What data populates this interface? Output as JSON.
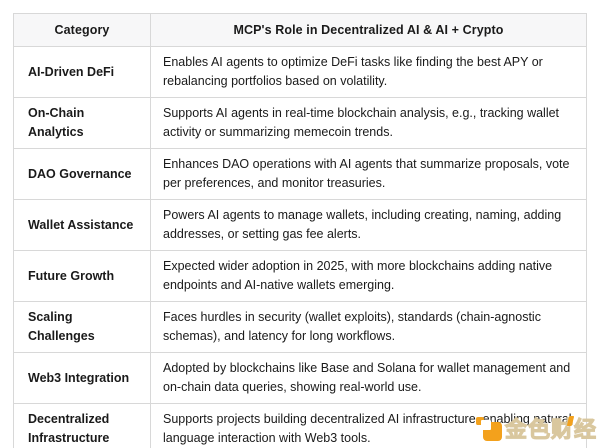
{
  "table": {
    "headers": [
      "Category",
      "MCP's Role in Decentralized AI & AI + Crypto"
    ],
    "rows": [
      {
        "category": "AI-Driven DeFi",
        "description": "Enables AI agents to optimize DeFi tasks like finding the best APY or rebalancing portfolios based on volatility."
      },
      {
        "category": "On-Chain Analytics",
        "description": "Supports AI agents in real-time blockchain analysis, e.g., tracking wallet activity or summarizing memecoin trends."
      },
      {
        "category": "DAO Governance",
        "description": "Enhances DAO operations with AI agents that summarize proposals, vote per preferences, and monitor treasuries."
      },
      {
        "category": "Wallet Assistance",
        "description": "Powers AI agents to manage wallets, including creating, naming, adding addresses, or setting gas fee alerts."
      },
      {
        "category": "Future Growth",
        "description": "Expected wider adoption in 2025, with more blockchains adding native endpoints and AI-native wallets emerging."
      },
      {
        "category": "Scaling Challenges",
        "description": "Faces hurdles in security (wallet exploits), standards (chain-agnostic schemas), and latency for long workflows."
      },
      {
        "category": "Web3 Integration",
        "description": "Adopted by blockchains like Base and Solana for wallet management and on-chain data queries, showing real-world use."
      },
      {
        "category": "Decentralized Infrastructure",
        "description": "Supports projects building decentralized AI infrastructure, enabling natural language interaction with Web3 tools."
      }
    ]
  },
  "watermark": {
    "text": "金色财经",
    "icon": "jinse-logo-icon",
    "accent_color": "#f3a11c"
  },
  "colors": {
    "header_bg": "#f7f7f8",
    "border": "#d8d8d8",
    "text": "#1a1a1a",
    "background": "#ffffff"
  }
}
